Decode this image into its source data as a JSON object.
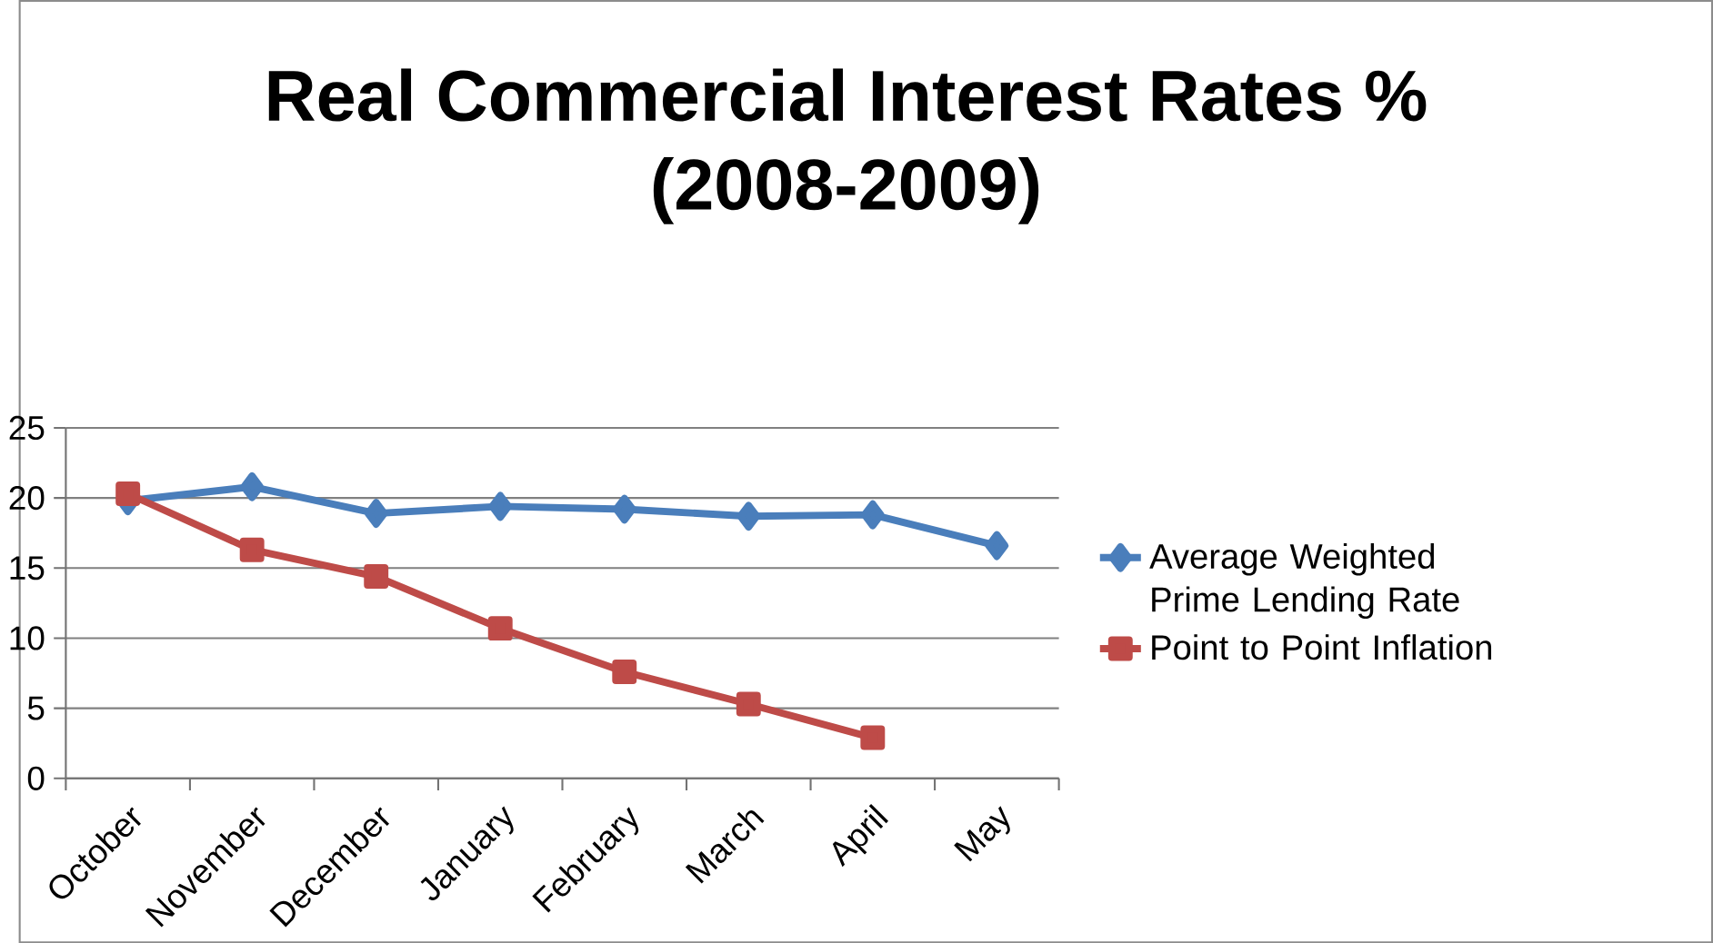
{
  "chart_data": {
    "type": "line",
    "title": "Real Commercial Interest Rates %\n(2008-2009)",
    "categories": [
      "October",
      "November",
      "December",
      "January",
      "February",
      "March",
      "April",
      "May"
    ],
    "series": [
      {
        "name": "Average Weighted Prime Lending Rate",
        "color": "#4a7ebb",
        "marker": "diamond",
        "values": [
          19.8,
          20.8,
          18.9,
          19.4,
          19.2,
          18.7,
          18.8,
          16.6
        ]
      },
      {
        "name": "Point to Point Inflation",
        "color": "#be4b48",
        "marker": "square",
        "values": [
          20.3,
          16.3,
          14.4,
          10.7,
          7.6,
          5.3,
          2.9,
          null
        ]
      }
    ],
    "ylim": [
      0,
      25
    ],
    "yticks": [
      0,
      5,
      10,
      15,
      20,
      25
    ],
    "grid": "y",
    "legend": "right",
    "line_style": "solid"
  }
}
